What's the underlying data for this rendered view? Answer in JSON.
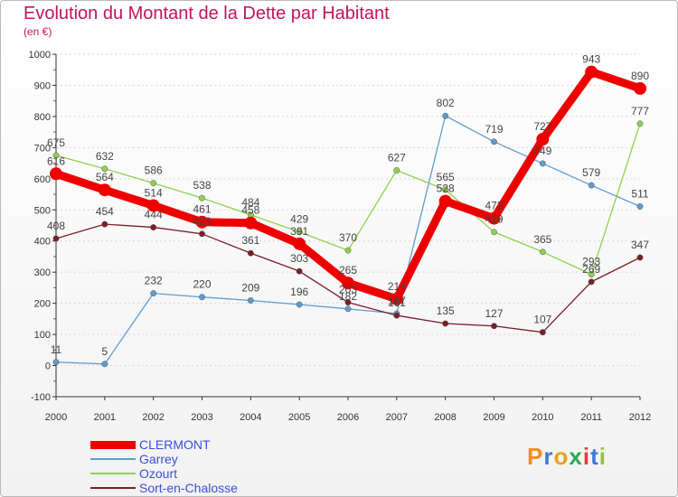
{
  "title": "Evolution du Montant de la Dette par Habitant",
  "subtitle": "(en €)",
  "logo_text": "Proxiti",
  "colors": {
    "title": "#c0145c",
    "legend_text": "#3b4fd8",
    "axis": "#333333",
    "grid": "#dddddd"
  },
  "chart_data": {
    "type": "line",
    "title": "Evolution du Montant de la Dette par Habitant",
    "subtitle": "(en €)",
    "xlabel": "",
    "ylabel": "",
    "x": [
      "2000",
      "2001",
      "2002",
      "2003",
      "2004",
      "2005",
      "2006",
      "2007",
      "2008",
      "2009",
      "2010",
      "2011",
      "2012"
    ],
    "ylim": [
      -100,
      1000
    ],
    "yticks": [
      "-100",
      "0",
      "100",
      "200",
      "300",
      "400",
      "500",
      "600",
      "700",
      "800",
      "900",
      "1000"
    ],
    "grid": "horizontal dashed",
    "legend_position": "bottom-left",
    "series": [
      {
        "name": "CLERMONT",
        "color": "#ee0000",
        "values": [
          616,
          564,
          514,
          461,
          458,
          391,
          265,
          214,
          528,
          473,
          727,
          943,
          890
        ],
        "labels": [
          "616",
          "564",
          "514",
          "461",
          "458",
          "391",
          "265",
          "214",
          "528",
          "473",
          "727",
          "943",
          "890"
        ]
      },
      {
        "name": "Garrey",
        "color": "#5e9ccf",
        "values": [
          11,
          5,
          232,
          220,
          209,
          196,
          182,
          167,
          802,
          719,
          649,
          579,
          511
        ],
        "labels": [
          "11",
          "5",
          "232",
          "220",
          "209",
          "196",
          "182",
          "167",
          "802",
          "719",
          "649",
          "579",
          "511"
        ]
      },
      {
        "name": "Ozourt",
        "color": "#8fd14f",
        "values": [
          675,
          632,
          586,
          538,
          484,
          429,
          370,
          627,
          565,
          429,
          365,
          293,
          777
        ],
        "labels": [
          "675",
          "632",
          "586",
          "538",
          "484",
          "429",
          "370",
          "627",
          "565",
          "429",
          "365",
          "293",
          "777"
        ]
      },
      {
        "name": "Sort-en-Chalosse",
        "color": "#7a1f24",
        "values": [
          408,
          454,
          444,
          423,
          361,
          303,
          203,
          161,
          135,
          127,
          107,
          269,
          347
        ],
        "labels": [
          "408",
          "454",
          "444",
          "423",
          "361",
          "303",
          "203",
          "161",
          "135",
          "127",
          "107",
          "269",
          "347"
        ]
      }
    ]
  }
}
